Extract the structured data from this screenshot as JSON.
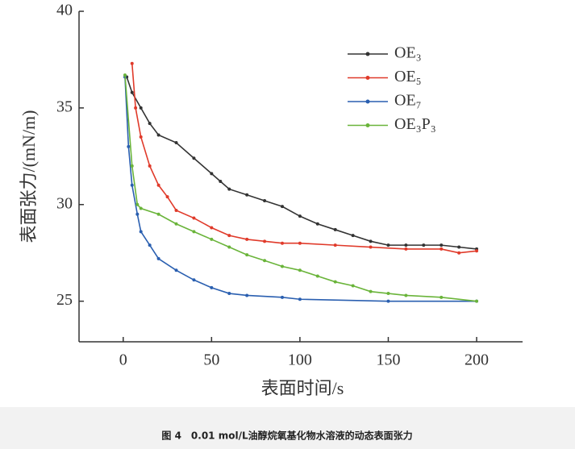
{
  "chart_data": {
    "type": "line",
    "xlabel": "表面时间/s",
    "ylabel": "表面张力/(mN/m)",
    "caption": "图 4　0.01 mol/L油醇烷氧基化物水溶液的动态表面张力",
    "xlim": [
      -25,
      226
    ],
    "ylim": [
      22.9,
      40
    ],
    "xticks": [
      0,
      50,
      100,
      150,
      200
    ],
    "yticks": [
      25,
      30,
      35,
      40
    ],
    "legend": "upper right",
    "series": [
      {
        "name": "OE₃",
        "color": "#333333",
        "x": [
          2,
          5,
          10,
          15,
          20,
          30,
          40,
          50,
          55,
          60,
          70,
          80,
          90,
          100,
          110,
          120,
          130,
          140,
          150,
          160,
          170,
          180,
          190,
          200
        ],
        "values": [
          36.6,
          35.8,
          35.0,
          34.2,
          33.6,
          33.2,
          32.4,
          31.6,
          31.2,
          30.8,
          30.5,
          30.2,
          29.9,
          29.4,
          29.0,
          28.7,
          28.4,
          28.1,
          27.9,
          27.9,
          27.9,
          27.9,
          27.8,
          27.7
        ]
      },
      {
        "name": "OE₅",
        "color": "#e03a2a",
        "x": [
          5,
          7,
          10,
          15,
          20,
          25,
          30,
          40,
          50,
          60,
          70,
          80,
          90,
          100,
          120,
          140,
          160,
          180,
          190,
          200
        ],
        "values": [
          37.3,
          35.0,
          33.5,
          32.0,
          31.0,
          30.4,
          29.7,
          29.3,
          28.8,
          28.4,
          28.2,
          28.1,
          28.0,
          28.0,
          27.9,
          27.8,
          27.7,
          27.7,
          27.5,
          27.6
        ]
      },
      {
        "name": "OE₇",
        "color": "#2a5fb0",
        "x": [
          1,
          3,
          5,
          8,
          10,
          15,
          20,
          30,
          40,
          50,
          60,
          70,
          90,
          100,
          150,
          200
        ],
        "values": [
          36.6,
          33.0,
          31.0,
          29.5,
          28.6,
          27.9,
          27.2,
          26.6,
          26.1,
          25.7,
          25.4,
          25.3,
          25.2,
          25.1,
          25.0,
          25.0
        ]
      },
      {
        "name": "OE₃P₃",
        "color": "#6ab43a",
        "x": [
          1,
          5,
          8,
          10,
          20,
          30,
          40,
          50,
          60,
          70,
          80,
          90,
          100,
          110,
          120,
          130,
          140,
          150,
          160,
          180,
          200
        ],
        "values": [
          36.7,
          32.0,
          30.0,
          29.8,
          29.5,
          29.0,
          28.6,
          28.2,
          27.8,
          27.4,
          27.1,
          26.8,
          26.6,
          26.3,
          26.0,
          25.8,
          25.5,
          25.4,
          25.3,
          25.2,
          25.0
        ]
      }
    ]
  }
}
